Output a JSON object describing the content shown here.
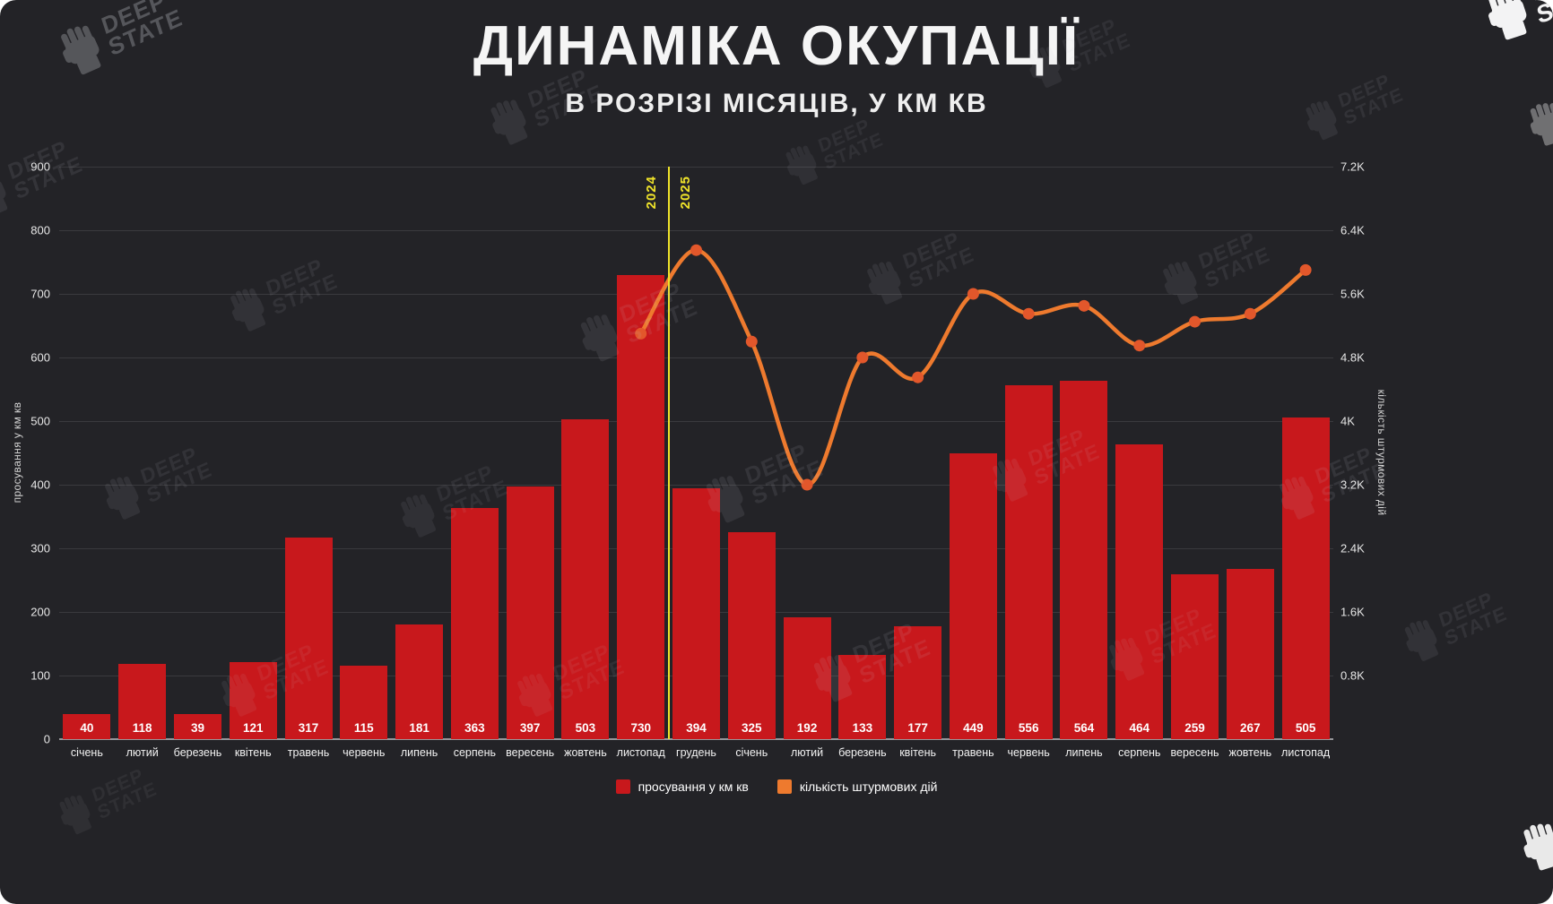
{
  "page": {
    "title": "ДИНАМІКА ОКУПАЦІЇ",
    "subtitle": "В РОЗРІЗІ МІСЯЦІВ, У КМ КВ"
  },
  "brand": {
    "name": "DeepState",
    "word1": "DEEP",
    "word2": "STATE"
  },
  "colors": {
    "background": "#232327",
    "bar": "#c8181c",
    "line": "#ee7a2e",
    "marker": "#e2572b",
    "divider": "#efe32a",
    "grid": "#3a3a3e",
    "axis_text": "#e6e6e6"
  },
  "divider": {
    "left_label": "2024",
    "right_label": "2025",
    "after_category_index": 10
  },
  "legend": [
    {
      "label": "просування у км кв",
      "color": "#c8181c"
    },
    {
      "label": "кількість штурмових дій",
      "color": "#ee7a2e"
    }
  ],
  "chart_data": {
    "type": "bar+line",
    "title": "ДИНАМІКА ОКУПАЦІЇ",
    "subtitle": "В РОЗРІЗІ МІСЯЦІВ, У КМ КВ",
    "categories": [
      "січень",
      "лютий",
      "березень",
      "квітень",
      "травень",
      "червень",
      "липень",
      "серпень",
      "вересень",
      "жовтень",
      "листопад",
      "грудень",
      "січень",
      "лютий",
      "березень",
      "квітень",
      "травень",
      "червень",
      "липень",
      "серпень",
      "вересень",
      "жовтень",
      "листопад"
    ],
    "year_split": {
      "before": "2024",
      "after": "2025",
      "between_indices": [
        10,
        11
      ]
    },
    "series": [
      {
        "name": "просування у км кв",
        "type": "bar",
        "axis": "left",
        "color": "#c8181c",
        "values": [
          40,
          118,
          39,
          121,
          317,
          115,
          181,
          363,
          397,
          503,
          730,
          394,
          325,
          192,
          133,
          177,
          449,
          556,
          564,
          464,
          259,
          267,
          505
        ]
      },
      {
        "name": "кількість штурмових дій",
        "type": "line",
        "axis": "right",
        "color": "#ee7a2e",
        "values": [
          null,
          null,
          null,
          null,
          null,
          null,
          null,
          null,
          null,
          null,
          5100,
          6150,
          5000,
          3200,
          4800,
          4550,
          5600,
          5350,
          5450,
          4950,
          5250,
          5350,
          5900
        ]
      }
    ],
    "left_axis": {
      "label": "просування у км кв",
      "min": 0,
      "max": 900,
      "step": 100,
      "tick_labels": [
        "0",
        "100",
        "200",
        "300",
        "400",
        "500",
        "600",
        "700",
        "800",
        "900"
      ]
    },
    "right_axis": {
      "label": "кількість штурмових дій",
      "min": 0,
      "max": 7200,
      "step": 800,
      "tick_labels": [
        "0.8K",
        "1.6K",
        "2.4K",
        "3.2K",
        "4K",
        "4.8K",
        "5.6K",
        "6.4K",
        "7.2K"
      ]
    },
    "grid": "horizontal",
    "legend_position": "bottom"
  }
}
